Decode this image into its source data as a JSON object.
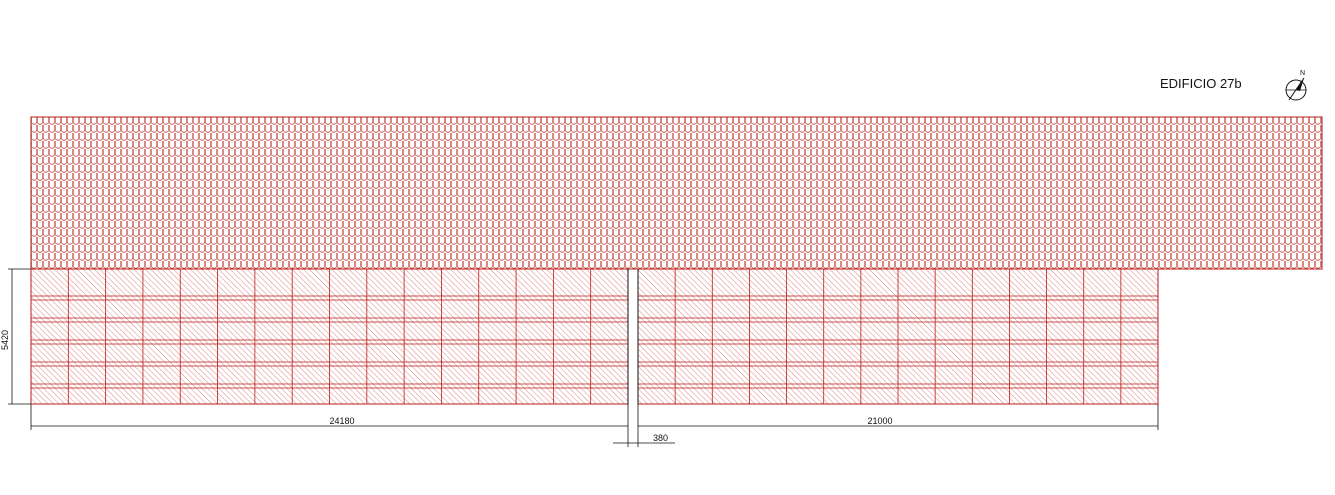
{
  "building_label": "EDIFICIO 27b",
  "north_label": "N",
  "dimensions": {
    "height": "5420",
    "left_width": "24180",
    "right_width": "21000",
    "gap": "380"
  },
  "colors": {
    "tile_stroke": "#c0392b",
    "panel_stroke": "#b71c1c",
    "hatch": "#d32f2f",
    "dimension_line": "#111111"
  }
}
